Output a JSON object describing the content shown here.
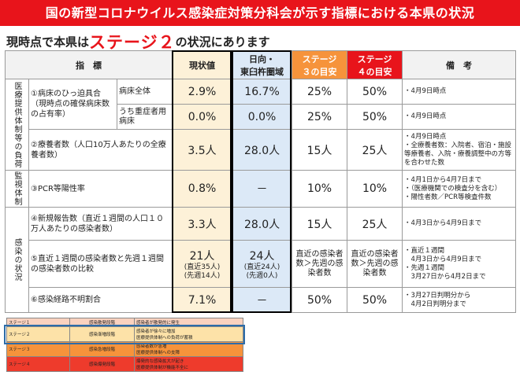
{
  "banner": "国の新型コロナウイルス感染症対策分科会が示す指標における本県の状況",
  "subtitle": {
    "pre": "現時点で本県は",
    "stage": "ステージ２",
    "post": "の状況にあります"
  },
  "headers": {
    "indicator": "指　標",
    "current": "現状値",
    "hyuga_l1": "日向・",
    "hyuga_l2": "東臼杵圏域",
    "stage3_l1": "ステージ",
    "stage3_l2": "３の目安",
    "stage4_l1": "ステージ",
    "stage4_l2": "４の目安",
    "remarks": "備　考"
  },
  "categories": {
    "medical": "医療提供体制等の負荷",
    "monitor": "監視体制",
    "infection": "感染の状況"
  },
  "rows": {
    "r1": {
      "indicator": "①病床のひっ迫具合（現時点の確保病床数の占有率）",
      "sub": "病床全体",
      "current": "2.9%",
      "hyuga": "16.7%",
      "s3": "25%",
      "s4": "50%",
      "note": "・4月9日時点"
    },
    "r2": {
      "sub": "うち重症者用病床",
      "current": "0.0%",
      "hyuga": "0.0%",
      "s3": "25%",
      "s4": "50%",
      "note": "・4月9日時点"
    },
    "r3": {
      "indicator": "②療養者数（人口10万人あたりの全療養者数）",
      "current": "3.5人",
      "hyuga": "28.0人",
      "s3": "15人",
      "s4": "25人",
      "note": "・4月9日時点\n・全療養者数：入院者、宿泊・施設等療養者、入院・療養調整中の方等を合わせた数"
    },
    "r4": {
      "indicator": "③PCR等陽性率",
      "current": "0.8%",
      "hyuga": "－",
      "s3": "10%",
      "s4": "10%",
      "note": "・4月1日から4月7日まで\n・（医療機関での検査分を含む）\n・陽性者数／PCR等検査件数"
    },
    "r5": {
      "indicator": "④新規報告数（直近１週間の人口１０万人あたりの感染者数）",
      "current": "3.3人",
      "hyuga": "28.0人",
      "s3": "15人",
      "s4": "25人",
      "note": "・4月3日から4月9日まで"
    },
    "r6": {
      "indicator": "⑤直近１週間の感染者数と先週１週間の感染者数の比較",
      "current_main": "21人",
      "current_a": "(直近35人)",
      "current_b": "(先週14人)",
      "hyuga_main": "24人",
      "hyuga_a": "(直近24人)",
      "hyuga_b": "(先週0人)",
      "s3": "直近の感染者数＞先週の感染者数",
      "s4": "直近の感染者数＞先週の感染者数",
      "note": "・直近１週間\n　4月3日から4月9日まで\n・先週１週間\n　3月27日から4月2日まで"
    },
    "r7": {
      "indicator": "⑥感染経路不明割合",
      "current": "7.1%",
      "hyuga": "－",
      "s3": "50%",
      "s4": "50%",
      "note": "・3月27日判明分から\n　4月2日判明分まで"
    }
  },
  "legend": [
    {
      "stage": "ステージ１",
      "phase": "感染散発段階",
      "desc": "感染者が散発的に発生"
    },
    {
      "stage": "ステージ２",
      "phase": "感染漸増段階",
      "desc": "感染者が徐々に増加\n医療提供体制への負荷が蓄積"
    },
    {
      "stage": "ステージ３",
      "phase": "感染急増段階",
      "desc": "感染者数が急増\n医療提供体制への支障"
    },
    {
      "stage": "ステージ４",
      "phase": "感染爆発段階",
      "desc": "爆発的な感染拡大が起き\n医療提供体制が機能不全に"
    }
  ],
  "colors": {
    "red": "#e8141b",
    "orange": "#f6933b",
    "current_bg": "#fdf1d8",
    "hyuga_bg": "#dce9f7",
    "legend_frame": "#2d6ca8"
  }
}
